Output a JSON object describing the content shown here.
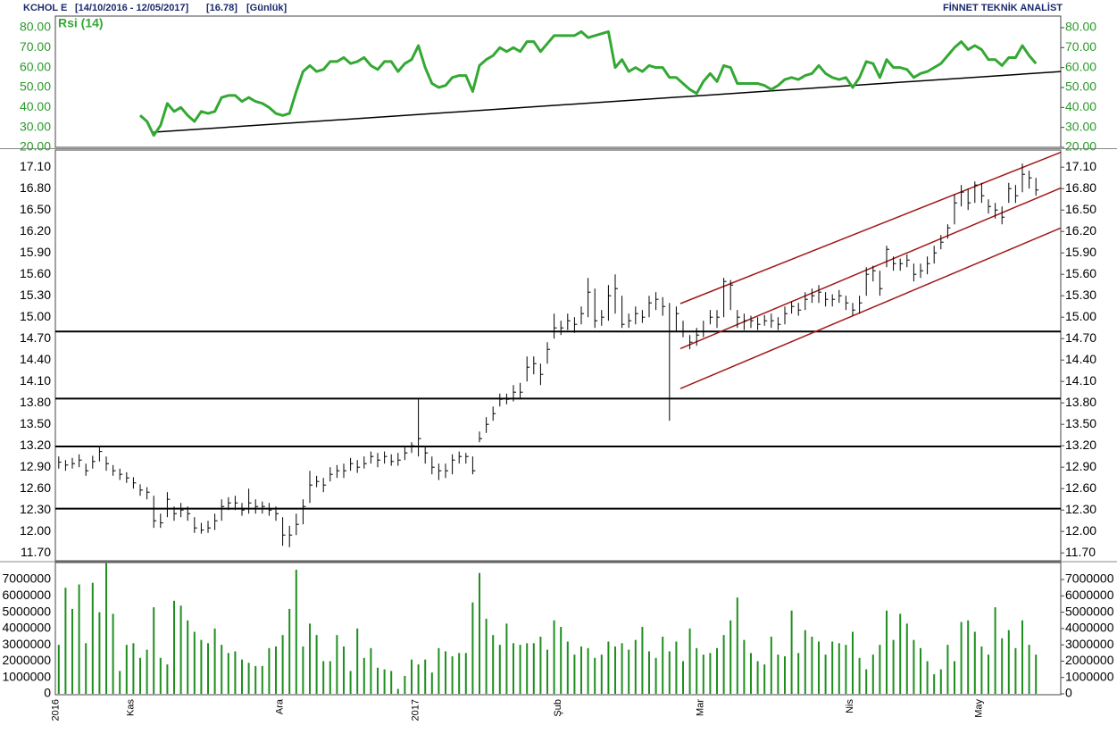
{
  "header": {
    "symbol": "KCHOL E",
    "range": "[14/10/2016 - 12/05/2017]",
    "last": "[16.78]",
    "period": "[Günlük]",
    "brand": "FİNNET TEKNİK ANALİST"
  },
  "chart_data": [
    {
      "type": "line",
      "tick_color": "#2a9a2a",
      "ylim": [
        20,
        85.8
      ],
      "yticks": [
        {
          "value": 20,
          "label": "20.00"
        },
        {
          "value": 30,
          "label": "30.00"
        },
        {
          "value": 40,
          "label": "40.00"
        },
        {
          "value": 50,
          "label": "50.00"
        },
        {
          "value": 60,
          "label": "60.00"
        },
        {
          "value": 70,
          "label": "70.00"
        },
        {
          "value": 80,
          "label": "80.00"
        }
      ],
      "series": [
        {
          "name": "Rsi (14)",
          "color": "#33a833",
          "values": [
            null,
            null,
            null,
            null,
            null,
            null,
            null,
            null,
            null,
            null,
            null,
            null,
            36,
            33,
            26,
            31,
            42,
            38,
            40,
            36,
            33,
            38,
            37,
            38,
            45,
            46,
            46,
            43,
            45,
            43,
            42,
            40,
            37,
            36,
            37,
            48,
            58,
            61,
            58,
            59,
            63,
            63,
            65,
            62,
            63,
            65,
            61,
            59,
            63,
            63,
            58,
            62,
            64,
            71,
            60,
            52,
            50,
            51,
            55,
            56,
            56,
            48,
            61,
            64,
            66,
            70,
            68,
            70,
            68,
            73,
            73,
            68,
            72,
            76,
            76,
            76,
            76,
            78,
            75,
            76,
            77,
            78,
            60,
            64,
            58,
            60,
            58,
            61,
            60,
            60,
            55,
            55,
            52,
            49,
            47,
            53,
            57,
            53,
            61,
            60,
            52,
            52,
            52,
            52,
            51,
            49,
            51,
            54,
            55,
            54,
            56,
            57,
            61,
            57,
            55,
            54,
            55,
            50,
            55,
            63,
            62,
            55,
            64,
            60,
            60,
            59,
            55,
            57,
            58,
            60,
            62,
            66,
            70,
            73,
            69,
            71,
            69,
            64,
            64,
            61,
            65,
            65,
            71,
            66,
            62
          ]
        }
      ],
      "trendlines": [
        {
          "color": "#000000",
          "x": [
            14,
            147.7
          ],
          "y": [
            27.6,
            58
          ]
        }
      ]
    },
    {
      "type": "ohlc",
      "tick_color": "#000000",
      "color": "#000000",
      "ylim": [
        11.59,
        17.34
      ],
      "yticks": [
        {
          "value": 11.7,
          "label": "11.70"
        },
        {
          "value": 12,
          "label": "12.00"
        },
        {
          "value": 12.3,
          "label": "12.30"
        },
        {
          "value": 12.6,
          "label": "12.60"
        },
        {
          "value": 12.9,
          "label": "12.90"
        },
        {
          "value": 13.2,
          "label": "13.20"
        },
        {
          "value": 13.5,
          "label": "13.50"
        },
        {
          "value": 13.8,
          "label": "13.80"
        },
        {
          "value": 14.1,
          "label": "14.10"
        },
        {
          "value": 14.4,
          "label": "14.40"
        },
        {
          "value": 14.7,
          "label": "14.70"
        },
        {
          "value": 15,
          "label": "15.00"
        },
        {
          "value": 15.3,
          "label": "15.30"
        },
        {
          "value": 15.6,
          "label": "15.60"
        },
        {
          "value": 15.9,
          "label": "15.90"
        },
        {
          "value": 16.2,
          "label": "16.20"
        },
        {
          "value": 16.5,
          "label": "16.50"
        },
        {
          "value": 16.8,
          "label": "16.80"
        },
        {
          "value": 17.1,
          "label": "17.10"
        }
      ],
      "high": [
        13.05,
        13.0,
        13.03,
        13.08,
        12.95,
        13.06,
        13.18,
        13.05,
        12.93,
        12.88,
        12.83,
        12.76,
        12.66,
        12.62,
        12.5,
        12.25,
        12.55,
        12.35,
        12.4,
        12.35,
        12.2,
        12.12,
        12.15,
        12.25,
        12.45,
        12.48,
        12.5,
        12.4,
        12.6,
        12.45,
        12.42,
        12.4,
        12.35,
        12.2,
        12.08,
        12.25,
        12.45,
        12.85,
        12.78,
        12.75,
        12.9,
        12.93,
        12.95,
        13.03,
        13.0,
        13.05,
        13.12,
        13.1,
        13.12,
        13.08,
        13.1,
        13.2,
        13.25,
        13.85,
        13.2,
        13.05,
        12.95,
        12.95,
        13.08,
        13.12,
        13.1,
        13.05,
        13.4,
        13.6,
        13.75,
        13.93,
        13.93,
        14.05,
        14.08,
        14.45,
        14.45,
        14.35,
        14.65,
        15.05,
        14.95,
        15.05,
        15.0,
        15.15,
        15.55,
        15.4,
        15.1,
        15.45,
        15.6,
        15.3,
        15.05,
        15.15,
        15.1,
        15.3,
        15.35,
        15.28,
        15.2,
        15.15,
        14.95,
        14.75,
        14.85,
        14.95,
        15.1,
        15.1,
        15.55,
        15.52,
        15.1,
        15.05,
        15.02,
        15.0,
        15.03,
        15.05,
        15.0,
        15.15,
        15.22,
        15.2,
        15.35,
        15.4,
        15.45,
        15.35,
        15.32,
        15.38,
        15.3,
        15.2,
        15.3,
        15.7,
        15.72,
        15.65,
        16.0,
        15.85,
        15.82,
        15.88,
        15.75,
        15.75,
        15.85,
        16.0,
        16.15,
        16.3,
        16.72,
        16.85,
        16.8,
        16.9,
        16.88,
        16.65,
        16.6,
        16.55,
        16.88,
        16.85,
        17.15,
        17.05,
        16.95
      ],
      "low": [
        12.88,
        12.85,
        12.88,
        12.9,
        12.78,
        12.88,
        12.98,
        12.85,
        12.78,
        12.72,
        12.68,
        12.6,
        12.5,
        12.45,
        12.05,
        12.05,
        12.2,
        12.15,
        12.2,
        12.15,
        11.98,
        11.97,
        11.98,
        12.02,
        12.15,
        12.3,
        12.3,
        12.22,
        12.25,
        12.25,
        12.25,
        12.22,
        12.15,
        11.8,
        11.78,
        11.95,
        12.1,
        12.4,
        12.62,
        12.55,
        12.7,
        12.75,
        12.75,
        12.85,
        12.82,
        12.88,
        12.95,
        12.9,
        12.95,
        12.92,
        12.92,
        13.0,
        13.1,
        13.05,
        12.95,
        12.8,
        12.72,
        12.75,
        12.8,
        12.95,
        12.95,
        12.8,
        13.25,
        13.38,
        13.55,
        13.75,
        13.78,
        13.82,
        13.85,
        14.1,
        14.2,
        14.05,
        14.35,
        14.7,
        14.75,
        14.82,
        14.78,
        14.9,
        15.0,
        14.85,
        14.88,
        14.95,
        15.05,
        14.85,
        14.85,
        14.9,
        14.92,
        15.0,
        15.1,
        15.02,
        13.55,
        14.8,
        14.72,
        14.55,
        14.6,
        14.72,
        14.9,
        14.85,
        15.0,
        15.1,
        14.85,
        14.82,
        14.85,
        14.82,
        14.88,
        14.85,
        14.82,
        14.9,
        15.05,
        15.02,
        15.1,
        15.2,
        15.2,
        15.15,
        15.15,
        15.2,
        15.1,
        15.02,
        15.05,
        15.3,
        15.5,
        15.3,
        15.7,
        15.65,
        15.65,
        15.7,
        15.5,
        15.55,
        15.6,
        15.75,
        15.95,
        16.1,
        16.3,
        16.55,
        16.5,
        16.6,
        16.6,
        16.45,
        16.38,
        16.3,
        16.6,
        16.6,
        16.75,
        16.8,
        16.7
      ],
      "close": [
        12.97,
        12.93,
        12.95,
        13.0,
        12.85,
        12.98,
        13.12,
        12.95,
        12.85,
        12.8,
        12.75,
        12.68,
        12.58,
        12.55,
        12.15,
        12.12,
        12.45,
        12.25,
        12.3,
        12.25,
        12.05,
        12.02,
        12.05,
        12.15,
        12.35,
        12.4,
        12.4,
        12.3,
        12.4,
        12.35,
        12.35,
        12.3,
        12.25,
        11.95,
        11.95,
        12.1,
        12.35,
        12.65,
        12.7,
        12.65,
        12.8,
        12.85,
        12.85,
        12.95,
        12.9,
        12.95,
        13.05,
        13.0,
        13.05,
        12.98,
        13.0,
        13.1,
        13.2,
        13.3,
        13.1,
        12.9,
        12.85,
        12.85,
        13.0,
        13.05,
        13.05,
        12.85,
        13.3,
        13.5,
        13.65,
        13.85,
        13.85,
        13.95,
        13.95,
        14.3,
        14.35,
        14.2,
        14.55,
        14.85,
        14.85,
        14.95,
        14.9,
        15.05,
        15.35,
        14.95,
        15.0,
        15.3,
        15.4,
        14.9,
        14.95,
        15.05,
        15.0,
        15.2,
        15.25,
        15.15,
        14.8,
        15.05,
        14.8,
        14.65,
        14.75,
        14.8,
        15.0,
        15.0,
        15.5,
        15.45,
        15.0,
        14.95,
        14.95,
        14.9,
        14.95,
        14.95,
        14.9,
        15.05,
        15.15,
        15.1,
        15.25,
        15.3,
        15.35,
        15.25,
        15.25,
        15.3,
        15.2,
        15.1,
        15.2,
        15.6,
        15.65,
        15.4,
        15.95,
        15.75,
        15.75,
        15.8,
        15.6,
        15.65,
        15.75,
        15.9,
        16.05,
        16.25,
        16.6,
        16.75,
        16.6,
        16.85,
        16.7,
        16.55,
        16.5,
        16.4,
        16.8,
        16.7,
        17.0,
        16.95,
        16.78
      ],
      "hlines": [
        14.8,
        13.86,
        13.19,
        12.32
      ],
      "trendlines": [
        {
          "color": "#a01818",
          "x": [
            91.6,
            147.7
          ],
          "y": [
            15.19,
            17.31
          ]
        },
        {
          "color": "#a01818",
          "x": [
            91.6,
            147.7
          ],
          "y": [
            14.56,
            16.81
          ]
        },
        {
          "color": "#a01818",
          "x": [
            91.6,
            147.7
          ],
          "y": [
            14.0,
            16.25
          ]
        }
      ]
    },
    {
      "type": "bar",
      "tick_color": "#000000",
      "color": "#1f8f1f",
      "ylim": [
        0,
        8040000
      ],
      "yticks": [
        0,
        1000000,
        2000000,
        3000000,
        4000000,
        5000000,
        6000000,
        7000000
      ],
      "categories": [
        "2016",
        null,
        null,
        null,
        null,
        null,
        null,
        null,
        null,
        null,
        null,
        "Kas",
        null,
        null,
        null,
        null,
        null,
        null,
        null,
        null,
        null,
        null,
        null,
        null,
        null,
        null,
        null,
        null,
        null,
        null,
        null,
        null,
        null,
        "Ara",
        null,
        null,
        null,
        null,
        null,
        null,
        null,
        null,
        null,
        null,
        null,
        null,
        null,
        null,
        null,
        null,
        null,
        null,
        null,
        "2017",
        null,
        null,
        null,
        null,
        null,
        null,
        null,
        null,
        null,
        null,
        null,
        null,
        null,
        null,
        null,
        null,
        null,
        null,
        null,
        null,
        "Şub",
        null,
        null,
        null,
        null,
        null,
        null,
        null,
        null,
        null,
        null,
        null,
        null,
        null,
        null,
        null,
        null,
        null,
        null,
        null,
        null,
        "Mar",
        null,
        null,
        null,
        null,
        null,
        null,
        null,
        null,
        null,
        null,
        null,
        null,
        null,
        null,
        null,
        null,
        null,
        null,
        null,
        null,
        null,
        "Nis",
        null,
        null,
        null,
        null,
        null,
        null,
        null,
        null,
        null,
        null,
        null,
        null,
        null,
        null,
        null,
        null,
        null,
        null,
        "May",
        null,
        null,
        null,
        null,
        null,
        null,
        null,
        null
      ],
      "values": [
        3000000,
        6500000,
        5200000,
        6700000,
        3100000,
        6800000,
        5000000,
        8000000,
        4900000,
        1400000,
        3000000,
        3100000,
        2200000,
        2700000,
        5300000,
        2200000,
        1800000,
        5700000,
        5400000,
        4500000,
        3800000,
        3300000,
        3100000,
        4000000,
        3000000,
        2500000,
        2600000,
        2100000,
        1900000,
        1700000,
        1700000,
        2800000,
        2900000,
        3600000,
        5200000,
        7600000,
        2900000,
        4300000,
        3600000,
        2000000,
        2000000,
        3600000,
        2900000,
        1400000,
        4000000,
        2200000,
        2800000,
        1600000,
        1500000,
        1400000,
        300000,
        1100000,
        2100000,
        1800000,
        2100000,
        1300000,
        2800000,
        2600000,
        2300000,
        2500000,
        2500000,
        5600000,
        7400000,
        4600000,
        3600000,
        3000000,
        4300000,
        3100000,
        3000000,
        3100000,
        3100000,
        3500000,
        2700000,
        4500000,
        4100000,
        3200000,
        2400000,
        2900000,
        2800000,
        2200000,
        2400000,
        3200000,
        2900000,
        3100000,
        2700000,
        3300000,
        4100000,
        2600000,
        2200000,
        3500000,
        2600000,
        3200000,
        2000000,
        4000000,
        2800000,
        2400000,
        2500000,
        2800000,
        3600000,
        4500000,
        5900000,
        3300000,
        2500000,
        2000000,
        1800000,
        3500000,
        2400000,
        2300000,
        5100000,
        2500000,
        3900000,
        3500000,
        3200000,
        2400000,
        3200000,
        3100000,
        3000000,
        3800000,
        2200000,
        1500000,
        2400000,
        3000000,
        5100000,
        3300000,
        4900000,
        4300000,
        3300000,
        2800000,
        2000000,
        1200000,
        1500000,
        3000000,
        2000000,
        4400000,
        4500000,
        3800000,
        2900000,
        2400000,
        5300000,
        3400000,
        3900000,
        2800000,
        4500000,
        3000000,
        2400000
      ]
    }
  ]
}
